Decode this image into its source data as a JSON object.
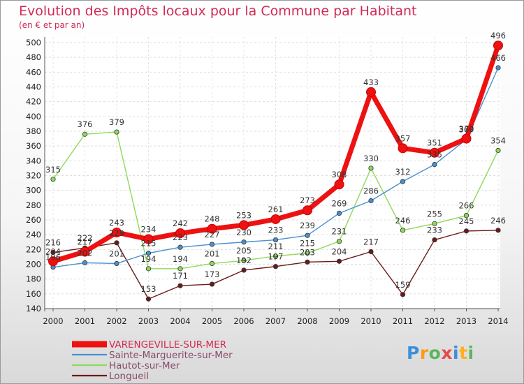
{
  "header": {
    "title": "Evolution des Impôts locaux pour la Commune par Habitant",
    "subtitle": "(en € et par an)"
  },
  "logo": {
    "text": "Proxiti",
    "colors": [
      "#3a8fd9",
      "#ff9a1a",
      "#5bb55b",
      "#e84a4a",
      "#3a8fd9",
      "#ffb020",
      "#5bb55b"
    ]
  },
  "chart_data": {
    "type": "line",
    "title": "Evolution des Impôts locaux pour la Commune par Habitant",
    "subtitle": "(en € et par an)",
    "xlabel": "",
    "ylabel": "",
    "x": [
      "2000",
      "2001",
      "2002",
      "2003",
      "2004",
      "2005",
      "2006",
      "2007",
      "2008",
      "2009",
      "2010",
      "2011",
      "2012",
      "2013",
      "2014"
    ],
    "ylim": [
      140,
      500
    ],
    "yticks": [
      140,
      160,
      180,
      200,
      220,
      240,
      260,
      280,
      300,
      320,
      340,
      360,
      380,
      400,
      420,
      440,
      460,
      480,
      500
    ],
    "grid": true,
    "legend_position": "bottom-left",
    "series": [
      {
        "name": "Longueil",
        "color": "#6b1a1a",
        "values": [
          216,
          222,
          229,
          153,
          171,
          173,
          192,
          197,
          203,
          204,
          217,
          159,
          233,
          245,
          246
        ]
      },
      {
        "name": "Hautot-sur-Mer",
        "color": "#8fd95a",
        "values": [
          315,
          376,
          379,
          194,
          194,
          201,
          205,
          211,
          215,
          231,
          330,
          246,
          255,
          266,
          354
        ]
      },
      {
        "name": "Sainte-Marguerite-sur-Mer",
        "color": "#4a90d0",
        "values": [
          196,
          202,
          201,
          215,
          223,
          227,
          230,
          233,
          239,
          269,
          286,
          312,
          335,
          369,
          466
        ]
      },
      {
        "name": "VARENGEVILLE-SUR-MER",
        "color": "#ee1111",
        "values": [
          204,
          217,
          243,
          234,
          242,
          248,
          253,
          261,
          273,
          308,
          433,
          357,
          351,
          370,
          496
        ]
      }
    ]
  }
}
